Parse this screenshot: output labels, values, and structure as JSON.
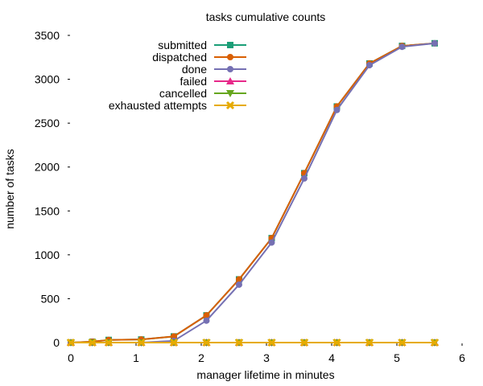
{
  "chart_data": {
    "type": "line",
    "title": "tasks cumulative counts",
    "xlabel": "manager lifetime in minutes",
    "ylabel": "number of tasks",
    "xlim": [
      0,
      6
    ],
    "ylim": [
      0,
      3500
    ],
    "xticks": [
      0,
      1,
      2,
      3,
      4,
      5,
      6
    ],
    "yticks": [
      0,
      500,
      1000,
      1500,
      2000,
      2500,
      3000,
      3500
    ],
    "grid": false,
    "legend": "top-left",
    "x": [
      0,
      0.33,
      0.58,
      1.08,
      1.58,
      2.08,
      2.58,
      3.08,
      3.58,
      4.08,
      4.58,
      5.08,
      5.58
    ],
    "series": [
      {
        "name": "submitted",
        "color": "#1b9e77",
        "marker": "square",
        "values": [
          0,
          10,
          30,
          35,
          70,
          310,
          720,
          1190,
          1930,
          2690,
          3180,
          3380,
          3410
        ]
      },
      {
        "name": "dispatched",
        "color": "#d95f02",
        "marker": "circle",
        "values": [
          0,
          10,
          30,
          35,
          70,
          310,
          720,
          1190,
          1930,
          2690,
          3180,
          3380,
          3410
        ]
      },
      {
        "name": "done",
        "color": "#7570b3",
        "marker": "circle",
        "values": [
          0,
          0,
          0,
          0,
          20,
          250,
          660,
          1140,
          1870,
          2650,
          3160,
          3370,
          3410
        ]
      },
      {
        "name": "failed",
        "color": "#e7298a",
        "marker": "triangle",
        "values": [
          0,
          0,
          0,
          0,
          0,
          0,
          0,
          0,
          0,
          0,
          0,
          0,
          0
        ]
      },
      {
        "name": "cancelled",
        "color": "#66a61e",
        "marker": "triangle-down",
        "values": [
          0,
          0,
          0,
          0,
          0,
          0,
          0,
          0,
          0,
          0,
          0,
          0,
          0
        ]
      },
      {
        "name": "exhausted attempts",
        "color": "#e6ab02",
        "marker": "cross",
        "values": [
          0,
          0,
          0,
          0,
          0,
          0,
          0,
          0,
          0,
          0,
          0,
          0,
          0
        ]
      }
    ]
  }
}
